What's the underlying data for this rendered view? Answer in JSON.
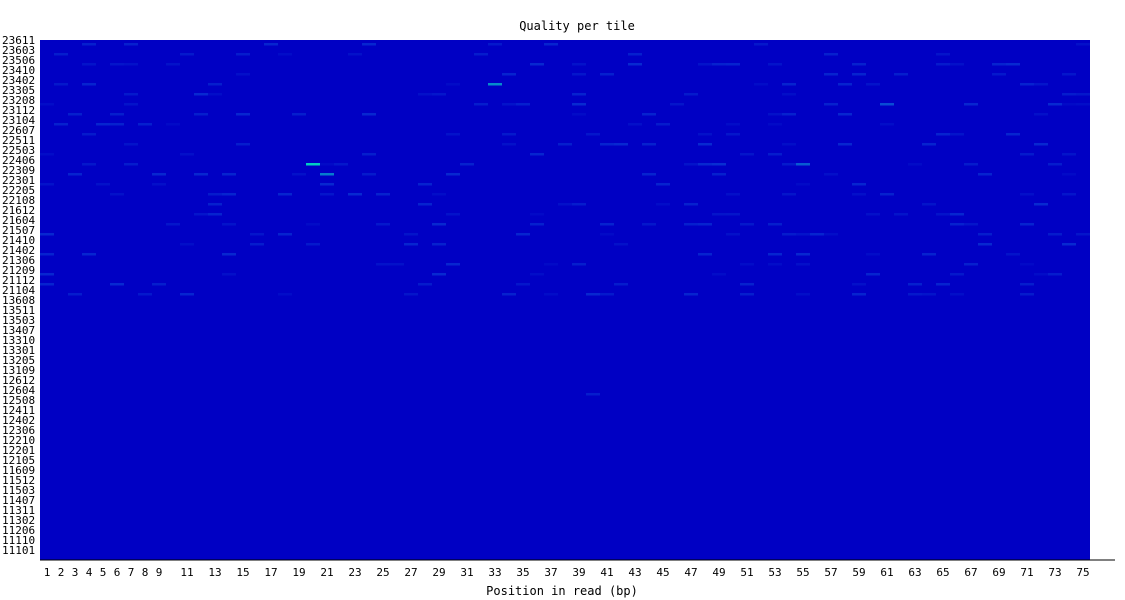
{
  "chart_data": {
    "type": "heatmap",
    "title": "Quality per tile",
    "xlabel": "Position in read (bp)",
    "ylabel": "",
    "x_ticks": [
      "1",
      "2",
      "3",
      "4",
      "5",
      "6",
      "7",
      "8",
      "9",
      "11",
      "13",
      "15",
      "17",
      "19",
      "21",
      "23",
      "25",
      "27",
      "29",
      "31",
      "33",
      "35",
      "37",
      "39",
      "41",
      "43",
      "45",
      "47",
      "49",
      "51",
      "53",
      "55",
      "57",
      "59",
      "61",
      "63",
      "65",
      "67",
      "69",
      "71",
      "73",
      "75"
    ],
    "y_ticks": [
      "23611",
      "23603",
      "23506",
      "23410",
      "23402",
      "23305",
      "23208",
      "23112",
      "23104",
      "22607",
      "22511",
      "22503",
      "22406",
      "22309",
      "22301",
      "22205",
      "22108",
      "21612",
      "21604",
      "21507",
      "21410",
      "21402",
      "21306",
      "21209",
      "21112",
      "21104",
      "13608",
      "13511",
      "13503",
      "13407",
      "13310",
      "13301",
      "13205",
      "13109",
      "12612",
      "12604",
      "12508",
      "12411",
      "12402",
      "12306",
      "12210",
      "12201",
      "12105",
      "11609",
      "11512",
      "11503",
      "11407",
      "11311",
      "11302",
      "11206",
      "11110",
      "11101"
    ],
    "x_range": [
      1,
      75
    ],
    "background_color": "#0000c4",
    "colors": {
      "low": "#0000c4",
      "mid": "#0a3ad6",
      "high": "#00e0c0"
    },
    "highlights": [
      {
        "tile": "22406",
        "position": 20,
        "level": 0.95
      },
      {
        "tile": "22309",
        "position": 21,
        "level": 0.7
      },
      {
        "tile": "23402",
        "position": 33,
        "level": 0.75
      },
      {
        "tile": "22406",
        "position": 55,
        "level": 0.6
      },
      {
        "tile": "23208",
        "position": 61,
        "level": 0.55
      },
      {
        "tile": "22406",
        "position": 49,
        "level": 0.4
      },
      {
        "tile": "22511",
        "position": 48,
        "level": 0.35
      },
      {
        "tile": "23506",
        "position": 70,
        "level": 0.35
      },
      {
        "tile": "21410",
        "position": 74,
        "level": 0.35
      },
      {
        "tile": "21209",
        "position": 29,
        "level": 0.35
      },
      {
        "tile": "21112",
        "position": 6,
        "level": 0.35
      },
      {
        "tile": "21104",
        "position": 59,
        "level": 0.3
      },
      {
        "tile": "21604",
        "position": 48,
        "level": 0.3
      },
      {
        "tile": "12604",
        "position": 40,
        "level": 0.25
      }
    ],
    "noise_rows_from": "23611",
    "noise_rows_to": "21104",
    "grid": false
  }
}
